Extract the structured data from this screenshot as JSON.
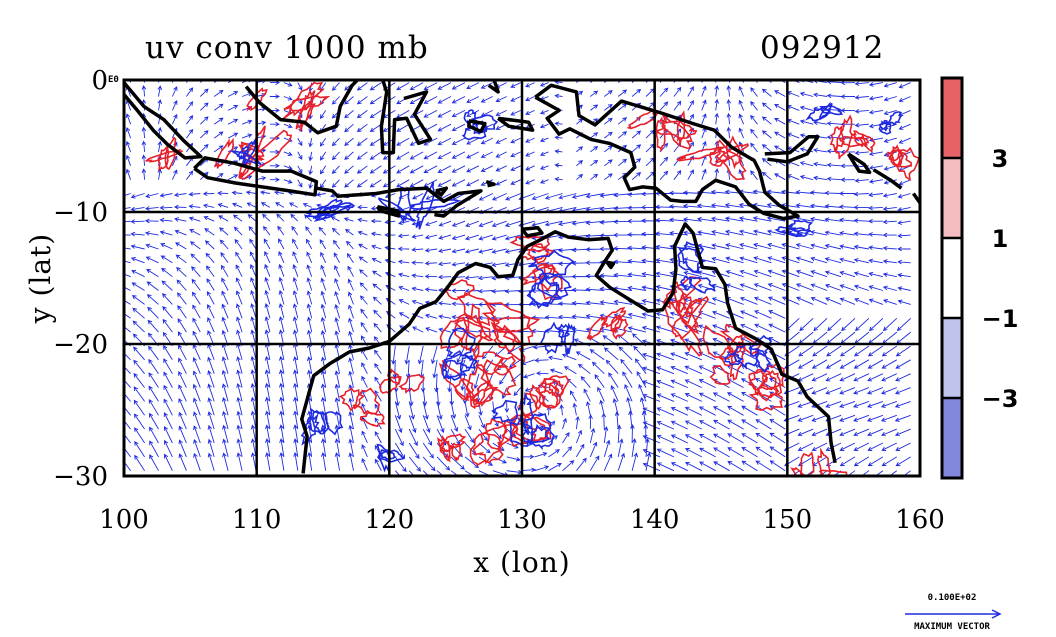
{
  "chart_data": {
    "type": "vector-contour-map",
    "title": "uv conv 1000 mb",
    "date_code": "092912",
    "xlabel": "x (lon)",
    "ylabel": "y (lat)",
    "xlim": [
      100,
      160
    ],
    "ylim": [
      -30,
      0
    ],
    "x_ticks": [
      {
        "value": 100,
        "label": "100"
      },
      {
        "value": 110,
        "label": "110"
      },
      {
        "value": 120,
        "label": "120"
      },
      {
        "value": 130,
        "label": "130"
      },
      {
        "value": 140,
        "label": "140"
      },
      {
        "value": 150,
        "label": "150"
      },
      {
        "value": 160,
        "label": "160"
      }
    ],
    "y_ticks": [
      {
        "value": 0,
        "label": "0"
      },
      {
        "value": -10,
        "label": "−10"
      },
      {
        "value": -20,
        "label": "−20"
      },
      {
        "value": -30,
        "label": "−30"
      }
    ],
    "y_top_tick_suffix": "E0",
    "grid": true,
    "colorbar": {
      "levels": [
        3,
        1,
        -1,
        -3
      ],
      "level_labels": [
        "3",
        "1",
        "−1",
        "−3"
      ],
      "bins": [
        {
          "color": "#e66266"
        },
        {
          "color": "#f4bcbf"
        },
        {
          "color": "#ffffff"
        },
        {
          "color": "#c0c4ec"
        },
        {
          "color": "#8288dc"
        }
      ]
    },
    "series": [
      {
        "name": "positive convergence contours",
        "color": "#e8202a"
      },
      {
        "name": "negative convergence contours",
        "color": "#1d2ae0"
      },
      {
        "name": "wind vectors",
        "color": "#1f2be0"
      },
      {
        "name": "coastline",
        "color": "#000000"
      }
    ],
    "reference_vector": {
      "value_label": "0.100E+02",
      "caption": "MAXIMUM VECTOR"
    }
  }
}
